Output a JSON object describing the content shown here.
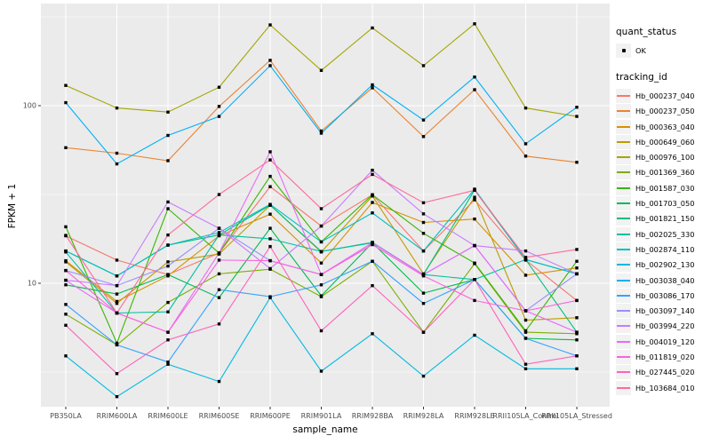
{
  "figure": {
    "x_axis": {
      "title": "sample_name"
    },
    "y_axis": {
      "title": "FPKM + 1",
      "tick_labels": [
        "100",
        "10"
      ]
    },
    "legend": {
      "quant_title": "quant_status",
      "quant_ok_label": "OK",
      "tracking_title": "tracking_id"
    },
    "colors": {
      "panel_bg": "#EBEBEB",
      "grid_major": "#FFFFFF",
      "grid_minor": "#F5F5F5",
      "marker": "#000000",
      "tick": "#333333",
      "tick_label": "#4D4D4D",
      "legend_key_bg": "#F2F2F2"
    }
  },
  "chart_data": {
    "type": "line",
    "title": "",
    "xlabel": "sample_name",
    "ylabel": "FPKM + 1",
    "y_scale": "log10",
    "y_ticks": [
      10,
      100
    ],
    "y_minor_ticks": [
      3.162,
      31.62,
      316.2
    ],
    "ylim": [
      1.9,
      367
    ],
    "grid": true,
    "legend_position": "right",
    "point_marker": "black square (quant_status OK)",
    "categories": [
      "PB350LA",
      "RRIM600LA",
      "RRIM600LE",
      "RRIM600SE",
      "RRIM600PE",
      "RRIM901LA",
      "RRIM928BA",
      "RRIM928LA",
      "RRIM928LE",
      "RRII105LA_Control",
      "RRII105LA_Stressed"
    ],
    "series": [
      {
        "name": "Hb_000237_040",
        "color": "#F8766D",
        "values": [
          18.5,
          13.5,
          11.2,
          14.8,
          35,
          21,
          31.5,
          15.2,
          29.5,
          13.5,
          8.0
        ]
      },
      {
        "name": "Hb_000237_050",
        "color": "#EA8331",
        "values": [
          58,
          54,
          49,
          99,
          180,
          72,
          126,
          67,
          123,
          52,
          48
        ]
      },
      {
        "name": "Hb_000363_040",
        "color": "#D89000",
        "values": [
          13.4,
          7.9,
          11.0,
          18.5,
          24.5,
          13.0,
          28.5,
          22.0,
          23.0,
          11.1,
          12.2
        ]
      },
      {
        "name": "Hb_000649_060",
        "color": "#C09B00",
        "values": [
          13.2,
          7.7,
          13.2,
          14.6,
          27.5,
          15.0,
          31.0,
          11.3,
          30.5,
          6.2,
          6.4
        ]
      },
      {
        "name": "Hb_000976_100",
        "color": "#A3A500",
        "values": [
          130,
          97,
          92,
          127,
          285,
          158,
          274,
          168,
          289,
          97,
          87
        ]
      },
      {
        "name": "Hb_001369_360",
        "color": "#7CAE00",
        "values": [
          6.7,
          4.5,
          7.8,
          11.3,
          12.0,
          8.4,
          13.3,
          5.3,
          12.9,
          5.3,
          5.2
        ]
      },
      {
        "name": "Hb_001587_030",
        "color": "#39B600",
        "values": [
          20.8,
          4.6,
          26.3,
          14.8,
          40,
          17.1,
          31.5,
          19.1,
          13.0,
          5.4,
          13.3
        ]
      },
      {
        "name": "Hb_001703_050",
        "color": "#00BB4E",
        "values": [
          9.8,
          8.7,
          11.2,
          8.3,
          20.4,
          8.5,
          16.9,
          8.8,
          10.5,
          4.9,
          4.8
        ]
      },
      {
        "name": "Hb_001821_150",
        "color": "#00BF7D",
        "values": [
          15.2,
          11.0,
          16.4,
          18.7,
          27.5,
          15.1,
          17.0,
          11.2,
          33.5,
          13.6,
          5.3
        ]
      },
      {
        "name": "Hb_002025_330",
        "color": "#00C1A3",
        "values": [
          15.0,
          6.8,
          6.9,
          18.7,
          17.8,
          15.1,
          16.9,
          11.2,
          10.5,
          13.6,
          11.3
        ]
      },
      {
        "name": "Hb_002874_110",
        "color": "#00BFC4",
        "values": [
          15.2,
          11.0,
          16.4,
          19.3,
          27.8,
          17.1,
          24.9,
          15.2,
          33.9,
          13.6,
          11.3
        ]
      },
      {
        "name": "Hb_002902_130",
        "color": "#00BAE0",
        "values": [
          3.9,
          2.3,
          3.5,
          2.8,
          8.3,
          3.2,
          5.2,
          3.0,
          5.1,
          3.3,
          3.3
        ]
      },
      {
        "name": "Hb_003038_040",
        "color": "#00B0F6",
        "values": [
          104,
          47,
          68,
          87,
          168,
          70,
          131,
          83,
          145,
          61,
          98
        ]
      },
      {
        "name": "Hb_003086_170",
        "color": "#35A2FF",
        "values": [
          7.6,
          4.5,
          3.6,
          9.2,
          8.4,
          9.8,
          13.3,
          7.7,
          10.5,
          4.9,
          3.9
        ]
      },
      {
        "name": "Hb_003097_140",
        "color": "#9590FF",
        "values": [
          11.8,
          9.7,
          12.5,
          20.4,
          13.4,
          11.2,
          16.9,
          11.2,
          16.3,
          7.0,
          11.3
        ]
      },
      {
        "name": "Hb_003994_220",
        "color": "#C77CFF",
        "values": [
          10.4,
          9.7,
          28.7,
          20.4,
          12.1,
          21.0,
          43.3,
          24.6,
          16.3,
          15.2,
          11.3
        ]
      },
      {
        "name": "Hb_004019_120",
        "color": "#E76BF3",
        "values": [
          10.4,
          6.8,
          5.3,
          14.8,
          55,
          11.2,
          16.9,
          11.2,
          16.3,
          7.0,
          5.3
        ]
      },
      {
        "name": "Hb_011819_020",
        "color": "#FA62DB",
        "values": [
          11.8,
          6.8,
          5.3,
          13.5,
          13.4,
          11.2,
          16.5,
          11.0,
          8.0,
          7.0,
          8.0
        ]
      },
      {
        "name": "Hb_027445_020",
        "color": "#FF62BC",
        "values": [
          5.8,
          3.1,
          4.8,
          5.9,
          16.1,
          5.4,
          9.7,
          5.3,
          10.5,
          3.5,
          3.9
        ]
      },
      {
        "name": "Hb_103684_010",
        "color": "#FF6A98",
        "values": [
          18.6,
          6.8,
          18.7,
          31.6,
          49.5,
          26.3,
          41,
          28.4,
          33.4,
          14,
          15.5
        ]
      }
    ]
  }
}
